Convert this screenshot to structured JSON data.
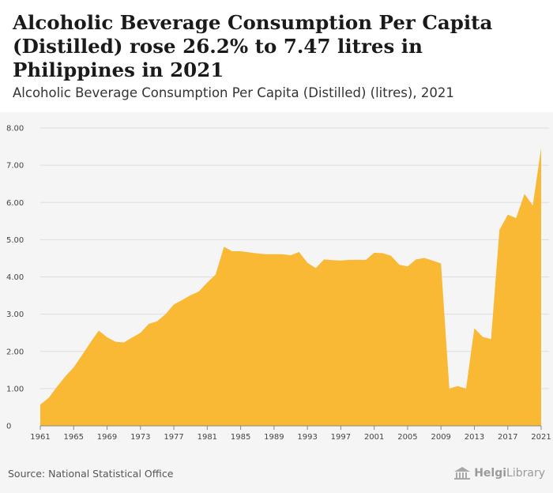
{
  "header": {
    "title": "Alcoholic Beverage Consumption Per Capita (Distilled) rose 26.2% to 7.47 litres in Philippines in 2021",
    "subtitle": "Alcoholic Beverage Consumption Per Capita (Distilled) (litres), 2021"
  },
  "footer": {
    "source": "Source: National Statistical Office",
    "brand_part1": "Helgi",
    "brand_part2": "Library"
  },
  "colors": {
    "fill": "#f9b934",
    "grid": "#dddddd",
    "background": "#f5f5f5"
  },
  "chart_data": {
    "type": "area",
    "title": "Alcoholic Beverage Consumption Per Capita (Distilled) rose 26.2% to 7.47 litres in Philippines in 2021",
    "xlabel": "",
    "ylabel": "litres",
    "ylim": [
      0,
      8
    ],
    "y_ticks": [
      "0",
      "1.00",
      "2.00",
      "3.00",
      "4.00",
      "5.00",
      "6.00",
      "7.00",
      "8.00"
    ],
    "x_ticks": [
      "1961",
      "1965",
      "1969",
      "1973",
      "1977",
      "1981",
      "1985",
      "1989",
      "1993",
      "1997",
      "2001",
      "2005",
      "2009",
      "2013",
      "2017",
      "2021"
    ],
    "series": [
      {
        "name": "Alcoholic Beverage Consumption Per Capita (Distilled)",
        "x": [
          1961,
          1962,
          1963,
          1964,
          1965,
          1966,
          1967,
          1968,
          1969,
          1970,
          1971,
          1972,
          1973,
          1974,
          1975,
          1976,
          1977,
          1978,
          1979,
          1980,
          1981,
          1982,
          1983,
          1984,
          1985,
          1986,
          1987,
          1988,
          1989,
          1990,
          1991,
          1992,
          1993,
          1994,
          1995,
          1996,
          1997,
          1998,
          1999,
          2000,
          2001,
          2002,
          2003,
          2004,
          2005,
          2006,
          2007,
          2008,
          2009,
          2010,
          2011,
          2012,
          2013,
          2014,
          2015,
          2016,
          2017,
          2018,
          2019,
          2020,
          2021
        ],
        "values": [
          0.57,
          0.75,
          1.05,
          1.33,
          1.57,
          1.9,
          2.24,
          2.56,
          2.38,
          2.26,
          2.24,
          2.37,
          2.5,
          2.74,
          2.81,
          3.0,
          3.26,
          3.38,
          3.51,
          3.61,
          3.85,
          4.06,
          4.81,
          4.69,
          4.69,
          4.66,
          4.63,
          4.61,
          4.61,
          4.61,
          4.58,
          4.67,
          4.38,
          4.24,
          4.47,
          4.45,
          4.44,
          4.46,
          4.46,
          4.46,
          4.65,
          4.64,
          4.57,
          4.33,
          4.28,
          4.47,
          4.51,
          4.44,
          4.36,
          1.0,
          1.07,
          1.0,
          2.62,
          2.39,
          2.33,
          5.26,
          5.67,
          5.58,
          6.23,
          5.92,
          7.47
        ]
      }
    ]
  }
}
